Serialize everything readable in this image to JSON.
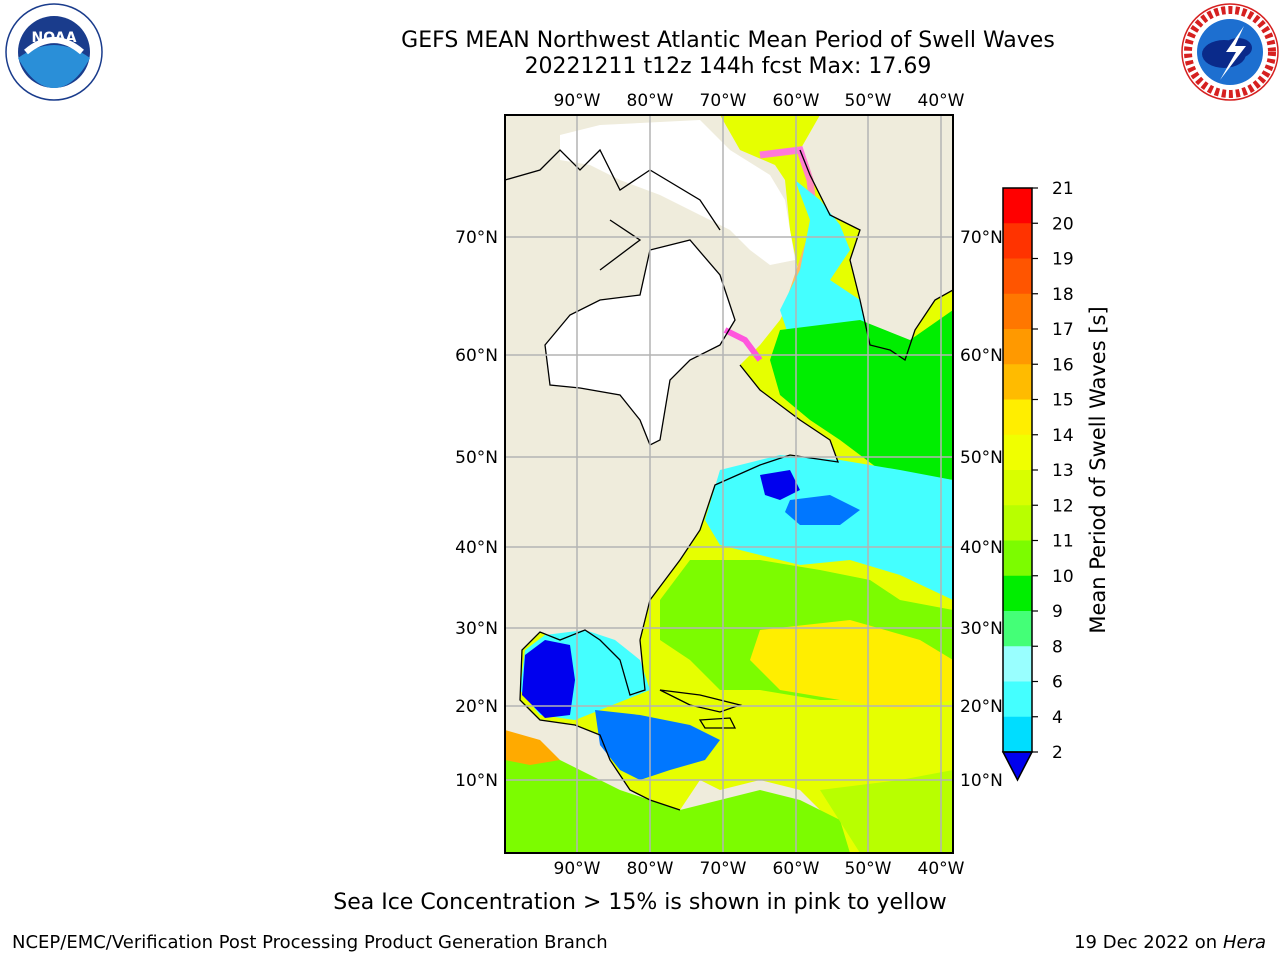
{
  "header": {
    "title_line1": "GEFS MEAN Northwest Atlantic Mean Period of Swell Waves",
    "title_line2": "20221211 t12z 144h fcst   Max: 17.69"
  },
  "logos": {
    "left": {
      "text": "NOAA",
      "ring_text": "NATIONAL OCEANIC AND ATMOSPHERIC ADMINISTRATION · U.S. DEPARTMENT OF COMMERCE"
    },
    "right": {
      "ring_text": "NATIONAL WEATHER SERVICE"
    }
  },
  "map": {
    "lon_labels": [
      "90°W",
      "80°W",
      "70°W",
      "60°W",
      "50°W",
      "40°W"
    ],
    "lat_labels": [
      "70°N",
      "60°N",
      "50°N",
      "40°N",
      "30°N",
      "20°N",
      "10°N"
    ],
    "land_color": "#efecdc",
    "ice_color": "#ffffff",
    "grid_color": "#b4b4b4"
  },
  "colorbar": {
    "label": "Mean Period of Swell Waves [s]",
    "ticks": [
      "21",
      "20",
      "19",
      "18",
      "17",
      "16",
      "15",
      "14",
      "13",
      "12",
      "11",
      "10",
      "9",
      "8",
      "6",
      "4",
      "2"
    ],
    "colors": [
      "#ff0000",
      "#ff3300",
      "#ff5500",
      "#ff7700",
      "#ff9900",
      "#ffbb00",
      "#ffee00",
      "#f0ff00",
      "#d8ff00",
      "#b8ff00",
      "#7cfc00",
      "#00ee00",
      "#44ff77",
      "#99ffff",
      "#44ffff",
      "#00ddff",
      "#0077ff",
      "#0000ee"
    ],
    "underflow_color": "#0000ee"
  },
  "caption": "Sea Ice Concentration > 15% is shown in pink to yellow",
  "footer": {
    "left": "NCEP/EMC/Verification Post Processing Product Generation Branch",
    "right_date": "19 Dec 2022 on",
    "right_host": "Hera"
  }
}
